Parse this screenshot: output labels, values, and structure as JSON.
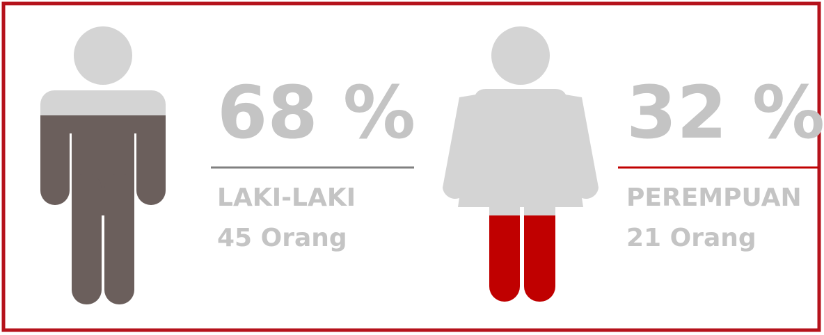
{
  "chart_data": {
    "type": "pictogram",
    "categories": [
      "LAKI-LAKI",
      "PEREMPUAN"
    ],
    "values": [
      68,
      32
    ],
    "value_labels": [
      "68 %",
      "32 %"
    ],
    "counts": [
      "45 Orang",
      "21 Orang"
    ],
    "colors": [
      "#6b5f5c",
      "#c00000"
    ],
    "base_color": "#d4d4d4",
    "ylim": [
      0,
      100
    ]
  }
}
